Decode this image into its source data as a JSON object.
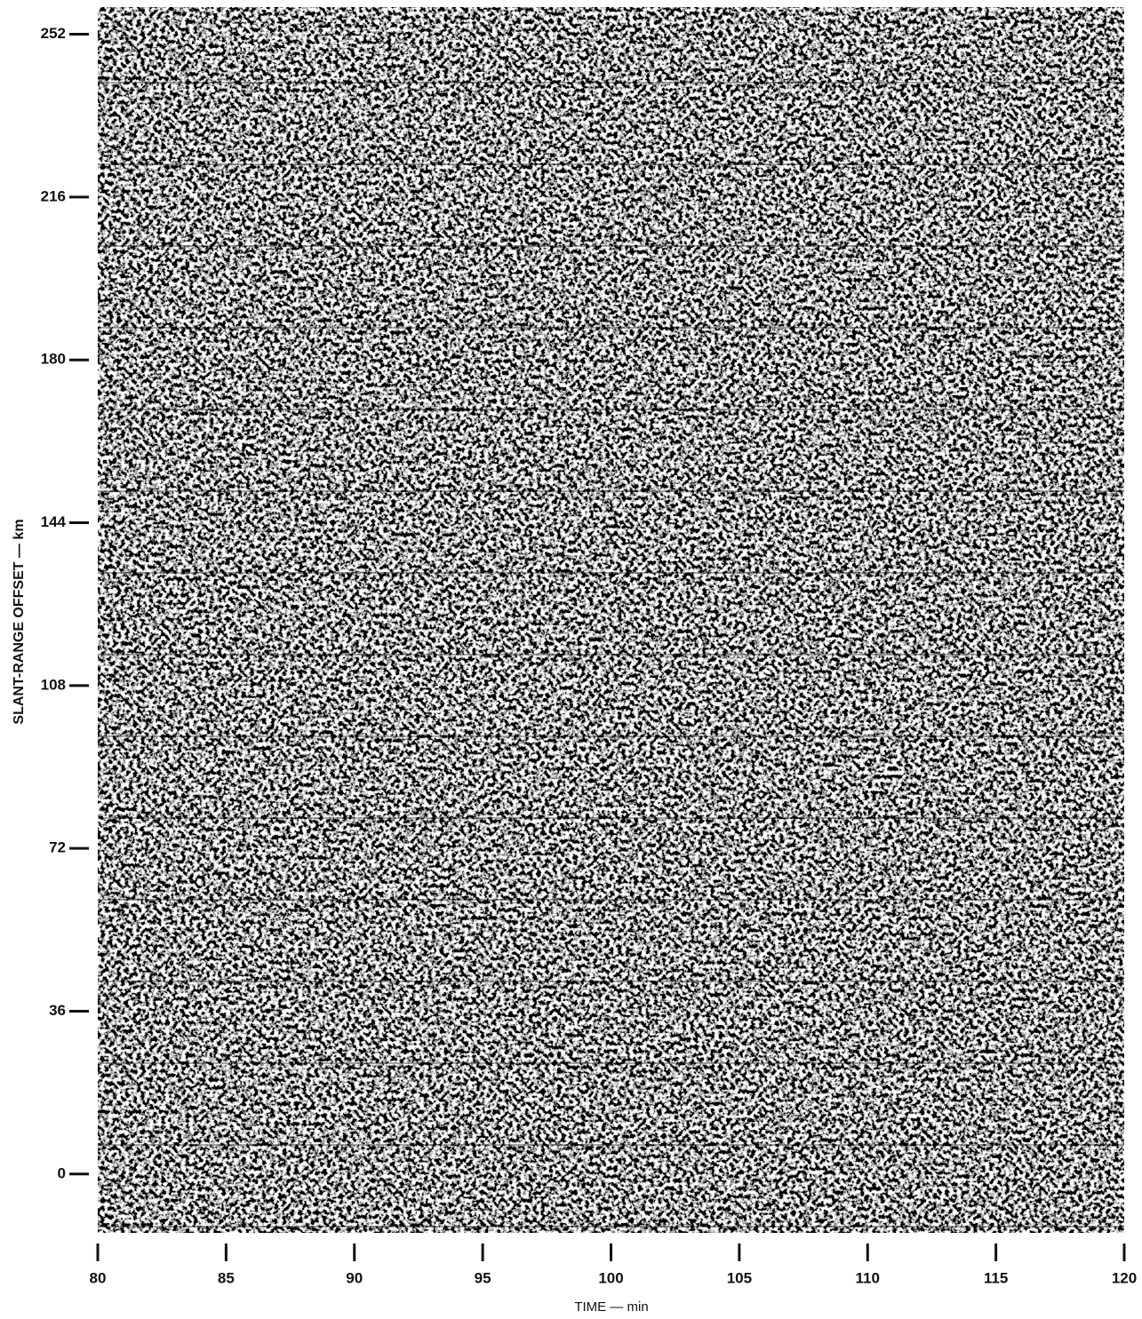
{
  "chart_data": {
    "type": "image",
    "x_label": "TIME — min",
    "y_label": "SLANT-RANGE OFFSET — km",
    "xlim": [
      80,
      120
    ],
    "xticks": [
      80,
      85,
      90,
      95,
      100,
      105,
      110,
      115,
      120
    ],
    "ylim": [
      -13,
      258
    ],
    "yticks": [
      0,
      36,
      72,
      108,
      144,
      180,
      216,
      252
    ]
  }
}
